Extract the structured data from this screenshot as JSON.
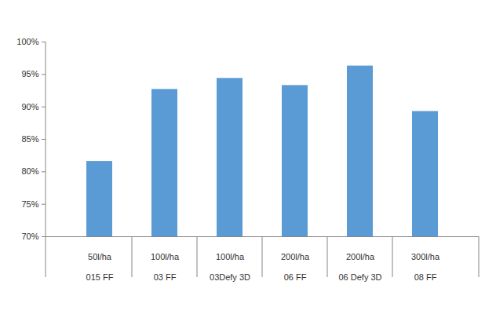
{
  "chart_data": {
    "type": "bar",
    "categories": [
      "50l/ha\n015 FF",
      "100l/ha\n03 FF",
      "100l/ha\n03Defy 3D",
      "200l/ha\n06 FF",
      "200l/ha\n06 Defy 3D",
      "300l/ha\n08 FF"
    ],
    "values": [
      81.6,
      92.7,
      94.4,
      93.3,
      96.3,
      89.3
    ],
    "color": "#5b9bd5",
    "ylim": [
      70,
      100
    ],
    "yticks": [
      {
        "value": 70,
        "label": "70%"
      },
      {
        "value": 75,
        "label": "75%"
      },
      {
        "value": 80,
        "label": "80%"
      },
      {
        "value": 85,
        "label": "85%"
      },
      {
        "value": 90,
        "label": "90%"
      },
      {
        "value": 95,
        "label": "95%"
      },
      {
        "value": 100,
        "label": "100%"
      }
    ],
    "grid": false
  }
}
